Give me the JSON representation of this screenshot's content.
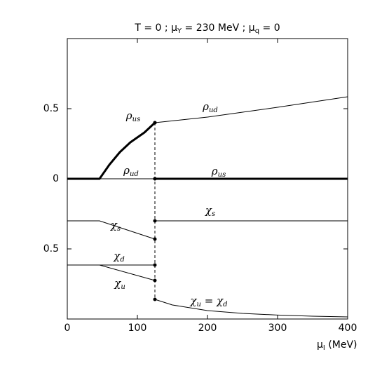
{
  "chart_data": {
    "type": "line",
    "title": [
      "T = 0  ;  μ",
      "Y",
      " = 230 MeV  ;  μ",
      "q",
      " = 0"
    ],
    "x_label": [
      "μ",
      "I",
      "  (MeV)"
    ],
    "xlim": [
      0,
      400
    ],
    "xticks": [
      0,
      100,
      200,
      300,
      400
    ],
    "ylim": [
      -1,
      1
    ],
    "yticks": [
      0.5,
      0,
      {
        "value": -0.5,
        "label": "0.5"
      }
    ],
    "discontinuity": 125,
    "series": [
      {
        "color": "#000000",
        "width": 3,
        "x": [
          0,
          46,
          60,
          75,
          90,
          110,
          125
        ],
        "values": [
          0,
          0,
          0.1,
          0.19,
          0.26,
          0.33,
          0.4
        ]
      },
      {
        "color": "#000000",
        "width": 3,
        "x": [
          125,
          400
        ],
        "values": [
          0,
          0
        ]
      },
      {
        "color": "#000000",
        "width": 1,
        "x": [
          0,
          125
        ],
        "values": [
          0,
          0
        ]
      },
      {
        "color": "#000000",
        "width": 1,
        "x": [
          125,
          200,
          300,
          400
        ],
        "values": [
          0.4,
          0.44,
          0.51,
          0.585
        ]
      },
      {
        "color": "#000000",
        "width": 1,
        "x": [
          0,
          46,
          125
        ],
        "values": [
          -0.3,
          -0.3,
          -0.43
        ]
      },
      {
        "color": "#000000",
        "width": 1,
        "x": [
          125,
          400
        ],
        "values": [
          -0.3,
          -0.3
        ]
      },
      {
        "color": "#000000",
        "width": 1,
        "x": [
          0,
          125
        ],
        "values": [
          -0.615,
          -0.615
        ]
      },
      {
        "color": "#000000",
        "width": 1,
        "x": [
          0,
          46,
          125
        ],
        "values": [
          -0.615,
          -0.615,
          -0.725
        ]
      },
      {
        "color": "#000000",
        "width": 1,
        "x": [
          125,
          150,
          200,
          250,
          300,
          350,
          400
        ],
        "values": [
          -0.86,
          -0.9,
          -0.94,
          -0.96,
          -0.972,
          -0.98,
          -0.985
        ]
      }
    ],
    "annotations": [
      [
        "ρ",
        "us"
      ],
      [
        "ρ",
        "ud"
      ],
      [
        "ρ",
        "ud"
      ],
      [
        "ρ",
        "us"
      ],
      [
        "χ",
        "s"
      ],
      [
        "χ",
        "s"
      ],
      [
        "χ",
        "d"
      ],
      [
        "χ",
        "u"
      ],
      [
        "χ",
        "u",
        " = χ",
        "d"
      ]
    ]
  }
}
